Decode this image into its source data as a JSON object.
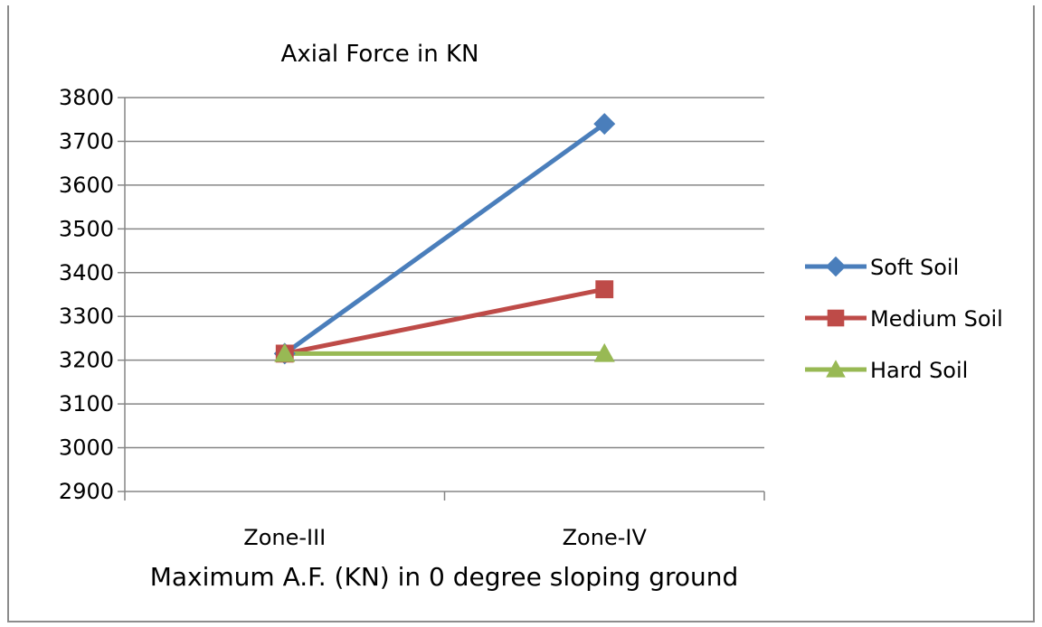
{
  "chart_data": {
    "type": "line",
    "title": "Axial Force in KN",
    "xlabel": "Maximum A.F. (KN) in 0 degree sloping ground",
    "ylabel": "",
    "categories": [
      "Zone-III",
      "Zone-IV"
    ],
    "ylim": [
      2900,
      3800
    ],
    "yticks": [
      3800,
      3700,
      3600,
      3500,
      3400,
      3300,
      3200,
      3100,
      3000,
      2900
    ],
    "grid": true,
    "legend_position": "right",
    "series": [
      {
        "name": "Soft Soil",
        "values": [
          3215,
          3740
        ],
        "color": "#4a7ebb",
        "marker": "diamond"
      },
      {
        "name": "Medium Soil",
        "values": [
          3215,
          3362
        ],
        "color": "#be4b48",
        "marker": "square"
      },
      {
        "name": "Hard Soil",
        "values": [
          3215,
          3215
        ],
        "color": "#98b954",
        "marker": "triangle"
      }
    ]
  }
}
